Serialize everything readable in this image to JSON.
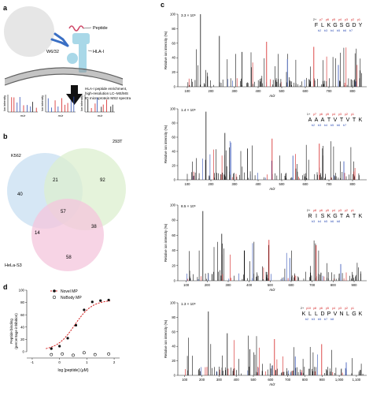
{
  "panels": {
    "a": {
      "letter": "a",
      "cell_labels": [
        "W6/32",
        "Peptide",
        "HLA-I"
      ],
      "workflow_text": [
        "HLA-I peptide enrichment,",
        "high-resolution LC–MS/MS",
        "ID microprotein MS2 spectra"
      ],
      "mini_ylabel": "Ion intensity",
      "mini_xlabel": "m/z"
    },
    "b": {
      "letter": "b",
      "sets": [
        "K562",
        "293T",
        "HeLa-S3"
      ],
      "counts": {
        "k562_only": "40",
        "t293_only": "92",
        "hela_only": "58",
        "k562_293t": "21",
        "k562_hela": "14",
        "t293_hela": "38",
        "all": "57"
      }
    },
    "d": {
      "letter": "d",
      "legend": [
        "Novel MP",
        "NoBody MP"
      ],
      "ylabel": [
        "Peptide binding",
        "(percentage inhibition)"
      ],
      "xlabel": "log [peptide] (μM)",
      "yticks": [
        "100",
        "80",
        "60",
        "40",
        "20",
        "0"
      ],
      "xticks": [
        "-1",
        "0",
        "1",
        "2"
      ],
      "colors": {
        "fit": "#d42020",
        "novel": "#111111"
      }
    },
    "c": {
      "letter": "c",
      "ylabel": "Relative ion intensity (%)",
      "xlabel": "m/z",
      "spectra": [
        {
          "scale": "3.3 × 10⁶",
          "sequence": [
            "F",
            "L",
            "K",
            "G",
            "S",
            "G",
            "D",
            "Y"
          ],
          "xticks": [
            "100",
            "200",
            "300",
            "400",
            "500",
            "600",
            "700",
            "800"
          ],
          "yticks": [
            "100",
            "80",
            "60",
            "40",
            "20",
            "0"
          ],
          "ions_top": [
            "2+",
            "y7",
            "y6",
            "y5",
            "y4",
            "y3",
            "y2",
            "y1"
          ],
          "ions_bottom": [
            "b2",
            "b3",
            "b4",
            "b5",
            "b6",
            "b7"
          ]
        },
        {
          "scale": "1.4 × 10⁶",
          "sequence": [
            "A",
            "A",
            "A",
            "T",
            "V",
            "T",
            "V",
            "T",
            "K"
          ],
          "xticks": [
            "100",
            "200",
            "300",
            "400",
            "500",
            "600",
            "700",
            "800"
          ],
          "yticks": [
            "100",
            "80",
            "60",
            "40",
            "20",
            "0"
          ],
          "ions_top": [
            "1+",
            "y7",
            "y6",
            "y5",
            "y4",
            "y3",
            "y2",
            "y1"
          ],
          "ions_bottom": [
            "b2",
            "b3",
            "b4",
            "b5",
            "b6",
            "b7"
          ]
        },
        {
          "scale": "8.5 × 10⁶",
          "sequence": [
            "R",
            "I",
            "S",
            "K",
            "G",
            "T",
            "A",
            "T",
            "K"
          ],
          "xticks": [
            "100",
            "200",
            "300",
            "400",
            "500",
            "600",
            "700",
            "800",
            "900"
          ],
          "yticks": [
            "100",
            "80",
            "60",
            "40",
            "20",
            "0"
          ],
          "ions_top": [
            "2+",
            "y8",
            "y6",
            "y5",
            "y4",
            "y3",
            "y2",
            "y1"
          ],
          "ions_bottom": [
            "b3",
            "b4",
            "b5",
            "b6",
            "b8"
          ]
        },
        {
          "scale": "1.3 × 10⁶",
          "sequence": [
            "K",
            "L",
            "L",
            "D",
            "P",
            "V",
            "N",
            "L",
            "G",
            "K"
          ],
          "xticks": [
            "100",
            "200",
            "300",
            "400",
            "500",
            "600",
            "700",
            "800",
            "900",
            "1,000",
            "1,100"
          ],
          "yticks": [
            "100",
            "80",
            "60",
            "40",
            "20",
            "0"
          ],
          "ions_top": [
            "2+",
            "y10",
            "y8",
            "y6",
            "y5",
            "y4",
            "y3",
            "y2",
            "y1"
          ],
          "ions_bottom": [
            "b2",
            "b3",
            "b5",
            "b7",
            "b8"
          ]
        }
      ]
    }
  }
}
